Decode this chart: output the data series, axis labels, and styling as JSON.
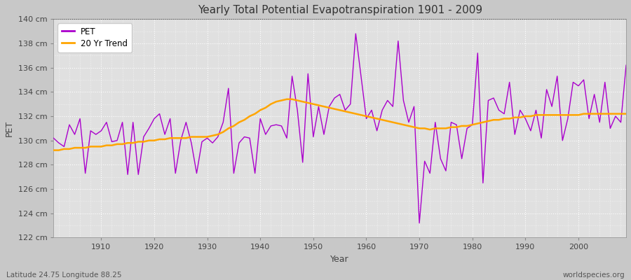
{
  "title": "Yearly Total Potential Evapotranspiration 1901 - 2009",
  "xlabel": "Year",
  "ylabel": "PET",
  "subtitle_left": "Latitude 24.75 Longitude 88.25",
  "subtitle_right": "worldspecies.org",
  "legend_pet": "PET",
  "legend_trend": "20 Yr Trend",
  "pet_color": "#aa00cc",
  "trend_color": "#FFA500",
  "fig_bg_color": "#c8c8c8",
  "plot_bg_color": "#e0e0e0",
  "ylim": [
    122,
    140
  ],
  "yticks": [
    122,
    124,
    126,
    128,
    130,
    132,
    134,
    136,
    138,
    140
  ],
  "ytick_labels": [
    "122 cm",
    "124 cm",
    "126 cm",
    "128 cm",
    "130 cm",
    "132 cm",
    "134 cm",
    "136 cm",
    "138 cm",
    "140 cm"
  ],
  "xlim_min": 1901,
  "xlim_max": 2009,
  "xticks": [
    1910,
    1920,
    1930,
    1940,
    1950,
    1960,
    1970,
    1980,
    1990,
    2000
  ],
  "years": [
    1901,
    1902,
    1903,
    1904,
    1905,
    1906,
    1907,
    1908,
    1909,
    1910,
    1911,
    1912,
    1913,
    1914,
    1915,
    1916,
    1917,
    1918,
    1919,
    1920,
    1921,
    1922,
    1923,
    1924,
    1925,
    1926,
    1927,
    1928,
    1929,
    1930,
    1931,
    1932,
    1933,
    1934,
    1935,
    1936,
    1937,
    1938,
    1939,
    1940,
    1941,
    1942,
    1943,
    1944,
    1945,
    1946,
    1947,
    1948,
    1949,
    1950,
    1951,
    1952,
    1953,
    1954,
    1955,
    1956,
    1957,
    1958,
    1959,
    1960,
    1961,
    1962,
    1963,
    1964,
    1965,
    1966,
    1967,
    1968,
    1969,
    1970,
    1971,
    1972,
    1973,
    1974,
    1975,
    1976,
    1977,
    1978,
    1979,
    1980,
    1981,
    1982,
    1983,
    1984,
    1985,
    1986,
    1987,
    1988,
    1989,
    1990,
    1991,
    1992,
    1993,
    1994,
    1995,
    1996,
    1997,
    1998,
    1999,
    2000,
    2001,
    2002,
    2003,
    2004,
    2005,
    2006,
    2007,
    2008,
    2009
  ],
  "pet_values": [
    130.2,
    129.8,
    129.5,
    131.3,
    130.5,
    131.8,
    127.3,
    130.8,
    130.5,
    130.8,
    131.5,
    129.9,
    130.0,
    131.5,
    127.2,
    131.5,
    127.2,
    130.3,
    131.0,
    131.8,
    132.2,
    130.5,
    131.8,
    127.3,
    130.0,
    131.5,
    129.8,
    127.3,
    129.9,
    130.2,
    129.8,
    130.3,
    131.5,
    134.3,
    127.3,
    129.8,
    130.3,
    130.2,
    127.3,
    131.8,
    130.5,
    131.2,
    131.3,
    131.2,
    130.2,
    135.3,
    132.5,
    128.2,
    135.5,
    130.3,
    132.8,
    130.5,
    132.8,
    133.5,
    133.8,
    132.5,
    133.0,
    138.8,
    135.3,
    131.8,
    132.5,
    130.8,
    132.5,
    133.3,
    132.8,
    138.2,
    133.3,
    131.5,
    132.8,
    123.2,
    128.3,
    127.3,
    131.5,
    128.5,
    127.5,
    131.5,
    131.3,
    128.5,
    131.0,
    131.3,
    137.2,
    126.5,
    133.3,
    133.5,
    132.5,
    132.2,
    134.8,
    130.5,
    132.5,
    131.8,
    130.8,
    132.5,
    130.2,
    134.2,
    132.8,
    135.3,
    130.0,
    131.8,
    134.8,
    134.5,
    135.0,
    131.8,
    133.8,
    131.5,
    134.8,
    131.0,
    132.0,
    131.5,
    136.2
  ],
  "trend_values": [
    129.2,
    129.2,
    129.3,
    129.3,
    129.4,
    129.4,
    129.4,
    129.5,
    129.5,
    129.5,
    129.6,
    129.6,
    129.7,
    129.7,
    129.8,
    129.8,
    129.9,
    129.9,
    130.0,
    130.0,
    130.1,
    130.1,
    130.2,
    130.2,
    130.2,
    130.2,
    130.3,
    130.3,
    130.3,
    130.3,
    130.4,
    130.5,
    130.7,
    131.0,
    131.2,
    131.5,
    131.7,
    132.0,
    132.2,
    132.5,
    132.7,
    133.0,
    133.2,
    133.3,
    133.4,
    133.4,
    133.3,
    133.2,
    133.1,
    133.0,
    132.9,
    132.8,
    132.7,
    132.6,
    132.5,
    132.4,
    132.3,
    132.2,
    132.1,
    132.0,
    131.9,
    131.8,
    131.7,
    131.6,
    131.5,
    131.4,
    131.3,
    131.2,
    131.1,
    131.0,
    131.0,
    130.9,
    131.0,
    131.0,
    131.0,
    131.1,
    131.1,
    131.2,
    131.2,
    131.3,
    131.4,
    131.5,
    131.6,
    131.7,
    131.7,
    131.8,
    131.8,
    131.9,
    131.9,
    132.0,
    132.0,
    132.1,
    132.1,
    132.1,
    132.1,
    132.1,
    132.1,
    132.1,
    132.1,
    132.1,
    132.2,
    132.2,
    132.2,
    132.2,
    132.2,
    132.2,
    132.2,
    132.2,
    132.2
  ]
}
